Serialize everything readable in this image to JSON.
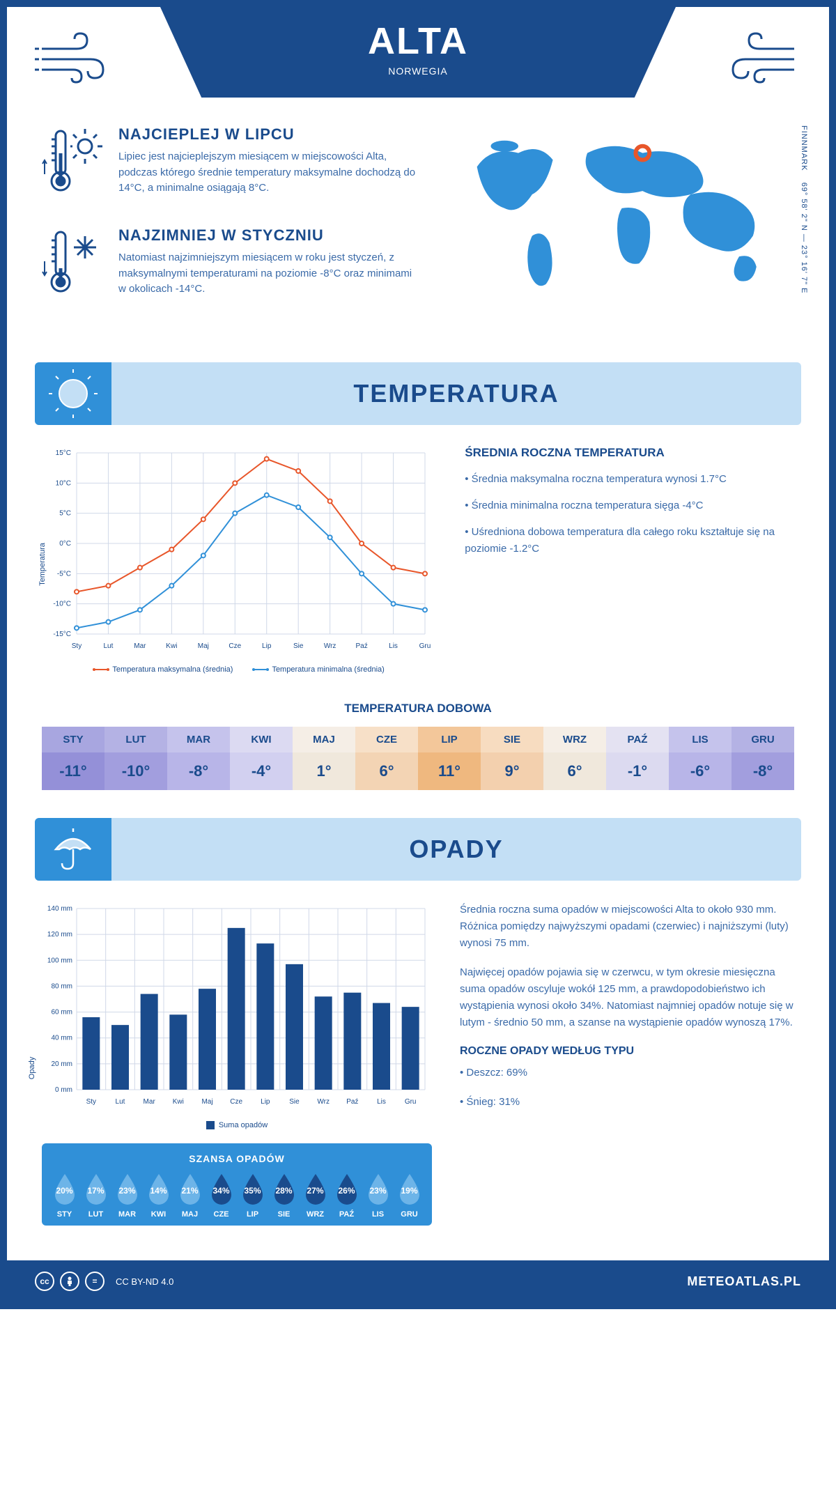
{
  "header": {
    "city": "ALTA",
    "country": "NORWEGIA"
  },
  "coords": {
    "region": "FINNMARK",
    "lat": "69° 58' 2\" N",
    "lon": "23° 16' 7\" E"
  },
  "intro": {
    "warm": {
      "title": "NAJCIEPLEJ W LIPCU",
      "text": "Lipiec jest najcieplejszym miesiącem w miejscowości Alta, podczas którego średnie temperatury maksymalne dochodzą do 14°C, a minimalne osiągają 8°C."
    },
    "cold": {
      "title": "NAJZIMNIEJ W STYCZNIU",
      "text": "Natomiast najzimniejszym miesiącem w roku jest styczeń, z maksymalnymi temperaturami na poziomie -8°C oraz minimami w okolicach -14°C."
    }
  },
  "temp_section": {
    "banner": "TEMPERATURA",
    "months": [
      "Sty",
      "Lut",
      "Mar",
      "Kwi",
      "Maj",
      "Cze",
      "Lip",
      "Sie",
      "Wrz",
      "Paź",
      "Lis",
      "Gru"
    ],
    "max_series": {
      "label": "Temperatura maksymalna (średnia)",
      "color": "#e8562a",
      "values": [
        -8,
        -7,
        -4,
        -1,
        4,
        10,
        14,
        12,
        7,
        0,
        -4,
        -5
      ]
    },
    "min_series": {
      "label": "Temperatura minimalna (średnia)",
      "color": "#3090d8",
      "values": [
        -14,
        -13,
        -11,
        -7,
        -2,
        5,
        8,
        6,
        1,
        -5,
        -10,
        -11
      ]
    },
    "y_axis": {
      "label": "Temperatura",
      "min": -15,
      "max": 15,
      "step": 5,
      "unit": "°C"
    },
    "grid_color": "#d0d8e8",
    "info_title": "ŚREDNIA ROCZNA TEMPERATURA",
    "info_bullets": [
      "• Średnia maksymalna roczna temperatura wynosi 1.7°C",
      "• Średnia minimalna roczna temperatura sięga -4°C",
      "• Uśredniona dobowa temperatura dla całego roku kształtuje się na poziomie -1.2°C"
    ]
  },
  "daily_temp": {
    "title": "TEMPERATURA DOBOWA",
    "months": [
      "STY",
      "LUT",
      "MAR",
      "KWI",
      "MAJ",
      "CZE",
      "LIP",
      "SIE",
      "WRZ",
      "PAŹ",
      "LIS",
      "GRU"
    ],
    "values": [
      "-11°",
      "-10°",
      "-8°",
      "-4°",
      "1°",
      "6°",
      "11°",
      "9°",
      "6°",
      "-1°",
      "-6°",
      "-8°"
    ],
    "header_colors": [
      "#a8a6e0",
      "#b4b2e4",
      "#c5c3ec",
      "#dcdaf2",
      "#f5eee6",
      "#f7e0c8",
      "#f3c79a",
      "#f7dcc0",
      "#f5eee6",
      "#e4e2f2",
      "#c5c3ec",
      "#b4b2e4"
    ],
    "value_colors": [
      "#9490d8",
      "#a29ede",
      "#b8b5e8",
      "#d2d0f0",
      "#f0e8dc",
      "#f3d4b4",
      "#efb87f",
      "#f3d0ae",
      "#f0e8dc",
      "#dcdaf0",
      "#b8b5e8",
      "#a29ede"
    ]
  },
  "precip_section": {
    "banner": "OPADY",
    "months": [
      "Sty",
      "Lut",
      "Mar",
      "Kwi",
      "Maj",
      "Cze",
      "Lip",
      "Sie",
      "Wrz",
      "Paź",
      "Lis",
      "Gru"
    ],
    "values": [
      56,
      50,
      74,
      58,
      78,
      125,
      113,
      97,
      72,
      75,
      67,
      64
    ],
    "bar_color": "#1a4b8c",
    "y_axis": {
      "label": "Opady",
      "min": 0,
      "max": 140,
      "step": 20,
      "unit": " mm"
    },
    "grid_color": "#d0d8e8",
    "legend": "Suma opadów",
    "text1": "Średnia roczna suma opadów w miejscowości Alta to około 930 mm. Różnica pomiędzy najwyższymi opadami (czerwiec) i najniższymi (luty) wynosi 75 mm.",
    "text2": "Najwięcej opadów pojawia się w czerwcu, w tym okresie miesięczna suma opadów oscyluje wokół 125 mm, a prawdopodobieństwo ich wystąpienia wynosi około 34%. Natomiast najmniej opadów notuje się w lutym - średnio 50 mm, a szanse na wystąpienie opadów wynoszą 17%.",
    "type_title": "ROCZNE OPADY WEDŁUG TYPU",
    "type_bullets": [
      "• Deszcz: 69%",
      "• Śnieg: 31%"
    ]
  },
  "chance": {
    "title": "SZANSA OPADÓW",
    "months": [
      "STY",
      "LUT",
      "MAR",
      "KWI",
      "MAJ",
      "CZE",
      "LIP",
      "SIE",
      "WRZ",
      "PAŹ",
      "LIS",
      "GRU"
    ],
    "pct": [
      "20%",
      "17%",
      "23%",
      "14%",
      "21%",
      "34%",
      "35%",
      "28%",
      "27%",
      "26%",
      "23%",
      "19%"
    ],
    "pct_num": [
      20,
      17,
      23,
      14,
      21,
      34,
      35,
      28,
      27,
      26,
      23,
      19
    ],
    "light_color": "#6db4e8",
    "dark_color": "#1a4b8c",
    "threshold": 25
  },
  "footer": {
    "license": "CC BY-ND 4.0",
    "brand": "METEOATLAS.PL"
  }
}
